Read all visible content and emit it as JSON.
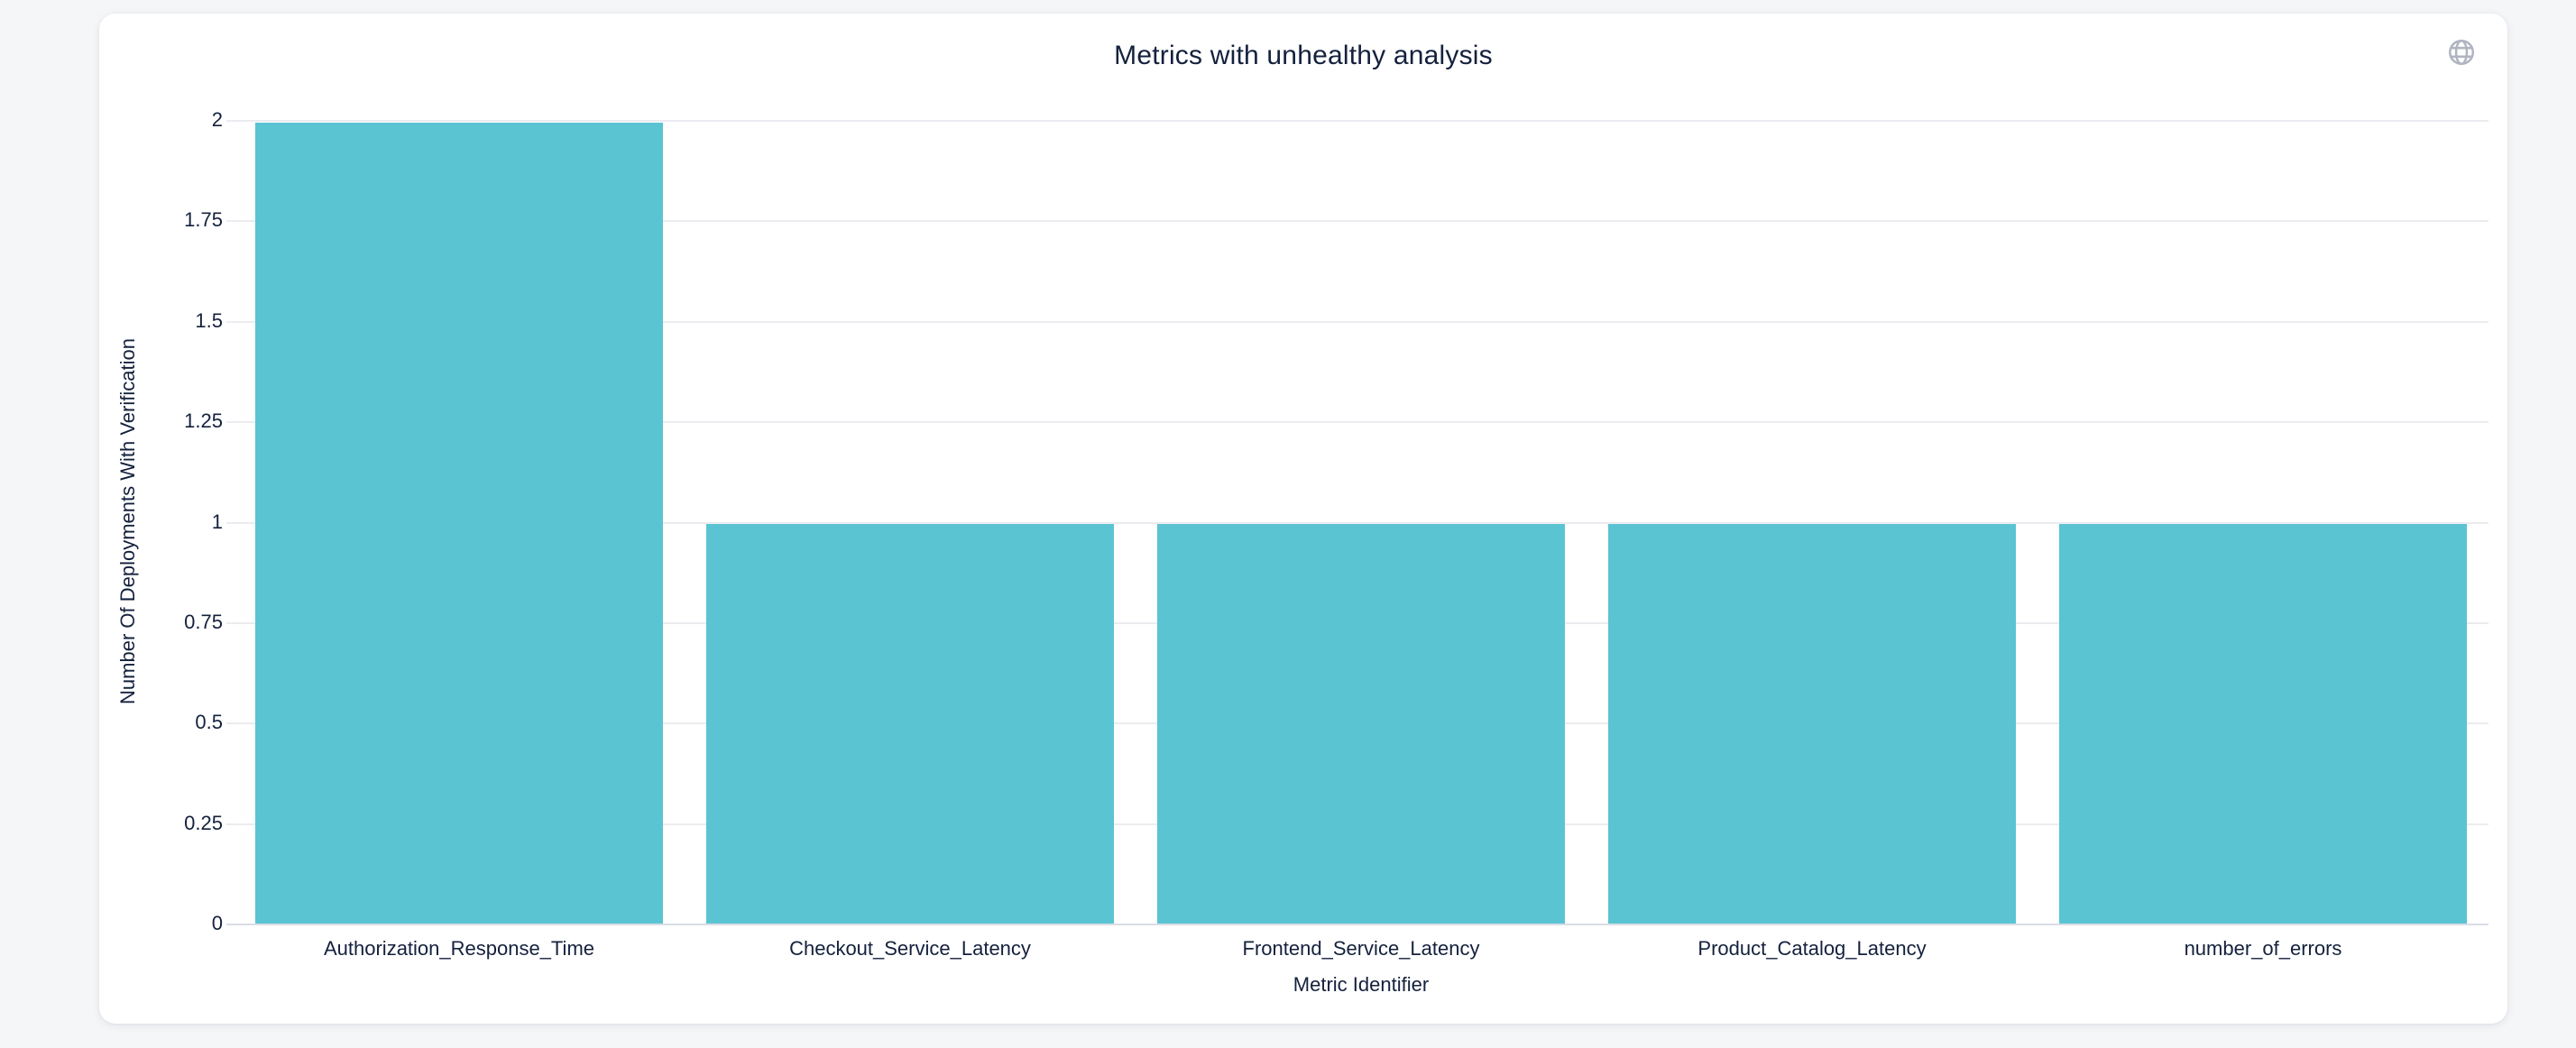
{
  "page": {
    "background_color": "#f5f6f8"
  },
  "card": {
    "background_color": "#ffffff"
  },
  "icons": {
    "top_right": "globe-icon",
    "icon_color": "#b0b5c1"
  },
  "chart_data": {
    "type": "bar",
    "title": "Metrics with unhealthy analysis",
    "categories": [
      "Authorization_Response_Time",
      "Checkout_Service_Latency",
      "Frontend_Service_Latency",
      "Product_Catalog_Latency",
      "number_of_errors"
    ],
    "values": [
      2,
      1,
      1,
      1,
      1
    ],
    "xlabel": "Metric Identifier",
    "ylabel": "Number Of Deployments With Verification",
    "ylim": [
      0,
      2
    ],
    "yticks": [
      "0",
      "0.25",
      "0.5",
      "0.75",
      "1",
      "1.25",
      "1.5",
      "1.75",
      "2"
    ],
    "bar_color": "#5ac4d3",
    "text_color": "#14213d",
    "gridline_color": "#ebecf0",
    "axisline_color": "#d9dde5",
    "grid": true,
    "legend": false
  }
}
